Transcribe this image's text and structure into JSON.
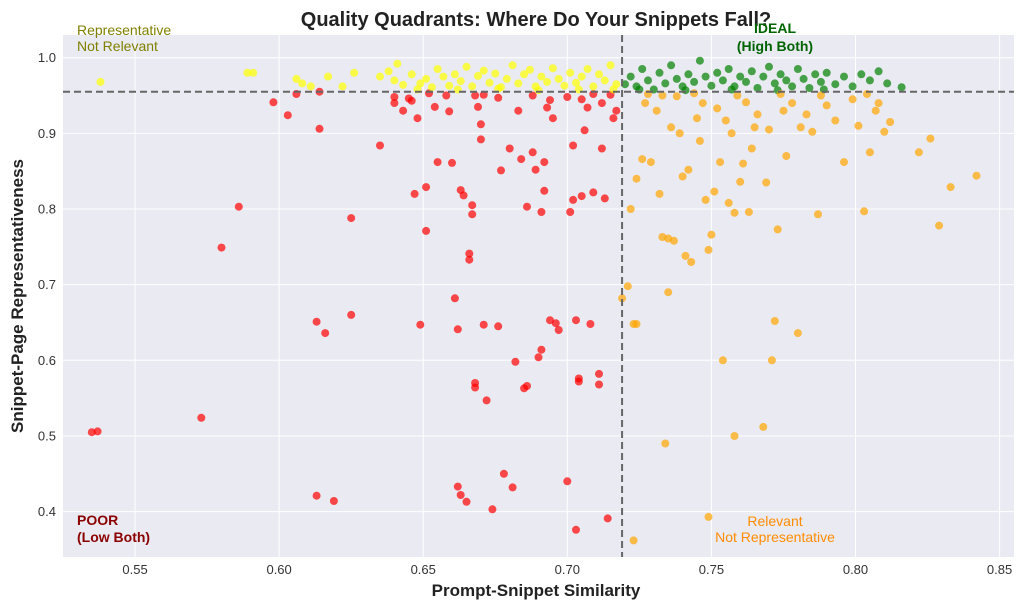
{
  "chart_data": {
    "type": "scatter",
    "title": "Quality Quadrants: Where Do Your Snippets Fall?",
    "xlabel": "Prompt-Snippet Similarity",
    "ylabel": "Snippet-Page Representativeness",
    "xlim": [
      0.525,
      0.855
    ],
    "ylim": [
      0.34,
      1.03
    ],
    "x_ticks": [
      "0.55",
      "0.60",
      "0.65",
      "0.70",
      "0.75",
      "0.80",
      "0.85"
    ],
    "y_ticks": [
      "0.4",
      "0.5",
      "0.6",
      "0.7",
      "0.8",
      "0.9",
      "1.0"
    ],
    "grid": true,
    "thresholds": {
      "x": 0.719,
      "y": 0.955
    },
    "colors": {
      "ideal": "#008000",
      "representative_not_relevant": "#ffff00",
      "relevant_not_representative": "#ffa500",
      "poor": "#ff0000",
      "background": "#eaeaf2",
      "threshold_line": "#666666"
    },
    "quadrant_labels": {
      "ideal_line1": "IDEAL",
      "ideal_line2": "(High Both)",
      "rep_line1": "Representative",
      "rep_line2": "Not Relevant",
      "poor_line1": "POOR",
      "poor_line2": "(Low Both)",
      "rel_line1": "Relevant",
      "rel_line2": "Not Representative"
    },
    "series": [
      {
        "quadrant": "poor",
        "points": [
          [
            0.535,
            0.505
          ],
          [
            0.537,
            0.506
          ],
          [
            0.573,
            0.524
          ],
          [
            0.58,
            0.749
          ],
          [
            0.586,
            0.803
          ],
          [
            0.598,
            0.941
          ],
          [
            0.603,
            0.924
          ],
          [
            0.613,
            0.651
          ],
          [
            0.614,
            0.906
          ],
          [
            0.614,
            0.955
          ],
          [
            0.616,
            0.636
          ],
          [
            0.613,
            0.421
          ],
          [
            0.619,
            0.414
          ],
          [
            0.625,
            0.66
          ],
          [
            0.625,
            0.788
          ],
          [
            0.635,
            0.884
          ],
          [
            0.64,
            0.94
          ],
          [
            0.643,
            0.93
          ],
          [
            0.645,
            0.946
          ],
          [
            0.648,
            0.92
          ],
          [
            0.647,
            0.82
          ],
          [
            0.649,
            0.647
          ],
          [
            0.651,
            0.771
          ],
          [
            0.651,
            0.829
          ],
          [
            0.654,
            0.935
          ],
          [
            0.655,
            0.862
          ],
          [
            0.658,
            0.95
          ],
          [
            0.66,
            0.861
          ],
          [
            0.661,
            0.682
          ],
          [
            0.662,
            0.641
          ],
          [
            0.662,
            0.433
          ],
          [
            0.663,
            0.422
          ],
          [
            0.663,
            0.825
          ],
          [
            0.664,
            0.818
          ],
          [
            0.665,
            0.413
          ],
          [
            0.666,
            0.733
          ],
          [
            0.666,
            0.741
          ],
          [
            0.667,
            0.805
          ],
          [
            0.667,
            0.793
          ],
          [
            0.668,
            0.57
          ],
          [
            0.668,
            0.564
          ],
          [
            0.669,
            0.935
          ],
          [
            0.67,
            0.912
          ],
          [
            0.67,
            0.892
          ],
          [
            0.671,
            0.647
          ],
          [
            0.672,
            0.547
          ],
          [
            0.674,
            0.403
          ],
          [
            0.676,
            0.645
          ],
          [
            0.677,
            0.851
          ],
          [
            0.678,
            0.45
          ],
          [
            0.68,
            0.88
          ],
          [
            0.681,
            0.432
          ],
          [
            0.682,
            0.598
          ],
          [
            0.683,
            0.93
          ],
          [
            0.684,
            0.866
          ],
          [
            0.685,
            0.563
          ],
          [
            0.686,
            0.566
          ],
          [
            0.686,
            0.803
          ],
          [
            0.688,
            0.875
          ],
          [
            0.689,
            0.852
          ],
          [
            0.69,
            0.604
          ],
          [
            0.691,
            0.614
          ],
          [
            0.691,
            0.796
          ],
          [
            0.692,
            0.824
          ],
          [
            0.692,
            0.862
          ],
          [
            0.693,
            0.934
          ],
          [
            0.694,
            0.653
          ],
          [
            0.695,
            0.92
          ],
          [
            0.696,
            0.649
          ],
          [
            0.697,
            0.64
          ],
          [
            0.7,
            0.44
          ],
          [
            0.701,
            0.796
          ],
          [
            0.702,
            0.884
          ],
          [
            0.702,
            0.812
          ],
          [
            0.703,
            0.376
          ],
          [
            0.703,
            0.653
          ],
          [
            0.704,
            0.572
          ],
          [
            0.704,
            0.576
          ],
          [
            0.705,
            0.817
          ],
          [
            0.706,
            0.904
          ],
          [
            0.707,
            0.934
          ],
          [
            0.708,
            0.648
          ],
          [
            0.709,
            0.822
          ],
          [
            0.711,
            0.582
          ],
          [
            0.711,
            0.568
          ],
          [
            0.712,
            0.88
          ],
          [
            0.713,
            0.814
          ],
          [
            0.714,
            0.391
          ],
          [
            0.716,
            0.92
          ],
          [
            0.717,
            0.93
          ],
          [
            0.606,
            0.952
          ],
          [
            0.64,
            0.948
          ],
          [
            0.652,
            0.953
          ],
          [
            0.671,
            0.951
          ],
          [
            0.688,
            0.95
          ],
          [
            0.7,
            0.948
          ],
          [
            0.709,
            0.952
          ],
          [
            0.715,
            0.951
          ],
          [
            0.646,
            0.943
          ],
          [
            0.676,
            0.947
          ],
          [
            0.694,
            0.944
          ],
          [
            0.705,
            0.945
          ],
          [
            0.712,
            0.94
          ],
          [
            0.659,
            0.929
          ],
          [
            0.668,
            0.95
          ]
        ]
      },
      {
        "quadrant": "representative_not_relevant",
        "points": [
          [
            0.538,
            0.968
          ],
          [
            0.589,
            0.98
          ],
          [
            0.591,
            0.98
          ],
          [
            0.606,
            0.972
          ],
          [
            0.608,
            0.966
          ],
          [
            0.611,
            0.962
          ],
          [
            0.617,
            0.975
          ],
          [
            0.622,
            0.962
          ],
          [
            0.626,
            0.98
          ],
          [
            0.635,
            0.975
          ],
          [
            0.638,
            0.982
          ],
          [
            0.64,
            0.97
          ],
          [
            0.641,
            0.992
          ],
          [
            0.643,
            0.964
          ],
          [
            0.646,
            0.978
          ],
          [
            0.649,
            0.966
          ],
          [
            0.651,
            0.972
          ],
          [
            0.653,
            0.961
          ],
          [
            0.655,
            0.985
          ],
          [
            0.657,
            0.975
          ],
          [
            0.659,
            0.963
          ],
          [
            0.661,
            0.978
          ],
          [
            0.663,
            0.969
          ],
          [
            0.665,
            0.988
          ],
          [
            0.667,
            0.962
          ],
          [
            0.669,
            0.976
          ],
          [
            0.671,
            0.983
          ],
          [
            0.673,
            0.967
          ],
          [
            0.675,
            0.979
          ],
          [
            0.677,
            0.961
          ],
          [
            0.679,
            0.972
          ],
          [
            0.681,
            0.99
          ],
          [
            0.683,
            0.966
          ],
          [
            0.685,
            0.978
          ],
          [
            0.687,
            0.984
          ],
          [
            0.689,
            0.962
          ],
          [
            0.691,
            0.975
          ],
          [
            0.693,
            0.968
          ],
          [
            0.695,
            0.986
          ],
          [
            0.697,
            0.972
          ],
          [
            0.699,
            0.963
          ],
          [
            0.701,
            0.98
          ],
          [
            0.703,
            0.967
          ],
          [
            0.705,
            0.975
          ],
          [
            0.707,
            0.985
          ],
          [
            0.709,
            0.962
          ],
          [
            0.711,
            0.978
          ],
          [
            0.713,
            0.97
          ],
          [
            0.715,
            0.99
          ],
          [
            0.717,
            0.965
          ],
          [
            0.648,
            0.958
          ],
          [
            0.662,
            0.958
          ],
          [
            0.676,
            0.959
          ],
          [
            0.69,
            0.957
          ],
          [
            0.704,
            0.958
          ],
          [
            0.716,
            0.958
          ]
        ]
      },
      {
        "quadrant": "ideal",
        "points": [
          [
            0.72,
            0.965
          ],
          [
            0.722,
            0.975
          ],
          [
            0.724,
            0.962
          ],
          [
            0.726,
            0.985
          ],
          [
            0.728,
            0.97
          ],
          [
            0.73,
            0.958
          ],
          [
            0.732,
            0.98
          ],
          [
            0.734,
            0.966
          ],
          [
            0.736,
            0.99
          ],
          [
            0.738,
            0.972
          ],
          [
            0.74,
            0.962
          ],
          [
            0.742,
            0.978
          ],
          [
            0.744,
            0.968
          ],
          [
            0.746,
            0.996
          ],
          [
            0.748,
            0.975
          ],
          [
            0.75,
            0.963
          ],
          [
            0.752,
            0.98
          ],
          [
            0.754,
            0.97
          ],
          [
            0.756,
            0.985
          ],
          [
            0.758,
            0.962
          ],
          [
            0.76,
            0.975
          ],
          [
            0.762,
            0.968
          ],
          [
            0.764,
            0.982
          ],
          [
            0.766,
            0.96
          ],
          [
            0.768,
            0.975
          ],
          [
            0.77,
            0.988
          ],
          [
            0.772,
            0.966
          ],
          [
            0.774,
            0.978
          ],
          [
            0.776,
            0.97
          ],
          [
            0.778,
            0.962
          ],
          [
            0.78,
            0.985
          ],
          [
            0.782,
            0.972
          ],
          [
            0.784,
            0.96
          ],
          [
            0.786,
            0.978
          ],
          [
            0.788,
            0.968
          ],
          [
            0.79,
            0.98
          ],
          [
            0.793,
            0.965
          ],
          [
            0.796,
            0.975
          ],
          [
            0.799,
            0.962
          ],
          [
            0.802,
            0.978
          ],
          [
            0.805,
            0.97
          ],
          [
            0.808,
            0.982
          ],
          [
            0.811,
            0.966
          ],
          [
            0.816,
            0.961
          ],
          [
            0.725,
            0.958
          ],
          [
            0.741,
            0.957
          ],
          [
            0.757,
            0.958
          ],
          [
            0.773,
            0.957
          ],
          [
            0.789,
            0.958
          ]
        ]
      },
      {
        "quadrant": "relevant_not_representative",
        "points": [
          [
            0.719,
            0.682
          ],
          [
            0.721,
            0.698
          ],
          [
            0.722,
            0.8
          ],
          [
            0.723,
            0.648
          ],
          [
            0.724,
            0.648
          ],
          [
            0.723,
            0.362
          ],
          [
            0.724,
            0.84
          ],
          [
            0.726,
            0.866
          ],
          [
            0.728,
            0.952
          ],
          [
            0.729,
            0.862
          ],
          [
            0.731,
            0.93
          ],
          [
            0.732,
            0.82
          ],
          [
            0.733,
            0.763
          ],
          [
            0.734,
            0.49
          ],
          [
            0.735,
            0.69
          ],
          [
            0.735,
            0.761
          ],
          [
            0.736,
            0.908
          ],
          [
            0.737,
            0.758
          ],
          [
            0.738,
            0.949
          ],
          [
            0.739,
            0.9
          ],
          [
            0.74,
            0.843
          ],
          [
            0.741,
            0.738
          ],
          [
            0.742,
            0.852
          ],
          [
            0.743,
            0.73
          ],
          [
            0.745,
            0.92
          ],
          [
            0.746,
            0.89
          ],
          [
            0.747,
            0.94
          ],
          [
            0.748,
            0.812
          ],
          [
            0.749,
            0.746
          ],
          [
            0.749,
            0.393
          ],
          [
            0.75,
            0.766
          ],
          [
            0.751,
            0.823
          ],
          [
            0.752,
            0.933
          ],
          [
            0.753,
            0.862
          ],
          [
            0.754,
            0.6
          ],
          [
            0.755,
            0.917
          ],
          [
            0.756,
            0.808
          ],
          [
            0.757,
            0.9
          ],
          [
            0.758,
            0.5
          ],
          [
            0.758,
            0.795
          ],
          [
            0.76,
            0.836
          ],
          [
            0.761,
            0.86
          ],
          [
            0.762,
            0.941
          ],
          [
            0.763,
            0.796
          ],
          [
            0.764,
            0.88
          ],
          [
            0.765,
            0.908
          ],
          [
            0.766,
            0.925
          ],
          [
            0.768,
            0.512
          ],
          [
            0.769,
            0.835
          ],
          [
            0.77,
            0.905
          ],
          [
            0.771,
            0.6
          ],
          [
            0.772,
            0.652
          ],
          [
            0.773,
            0.773
          ],
          [
            0.775,
            0.93
          ],
          [
            0.776,
            0.87
          ],
          [
            0.778,
            0.94
          ],
          [
            0.78,
            0.636
          ],
          [
            0.781,
            0.908
          ],
          [
            0.783,
            0.925
          ],
          [
            0.785,
            0.902
          ],
          [
            0.787,
            0.793
          ],
          [
            0.79,
            0.937
          ],
          [
            0.793,
            0.917
          ],
          [
            0.796,
            0.862
          ],
          [
            0.799,
            0.945
          ],
          [
            0.801,
            0.91
          ],
          [
            0.803,
            0.797
          ],
          [
            0.805,
            0.875
          ],
          [
            0.807,
            0.93
          ],
          [
            0.81,
            0.902
          ],
          [
            0.812,
            0.915
          ],
          [
            0.822,
            0.875
          ],
          [
            0.826,
            0.893
          ],
          [
            0.829,
            0.778
          ],
          [
            0.833,
            0.829
          ],
          [
            0.842,
            0.844
          ],
          [
            0.727,
            0.94
          ],
          [
            0.733,
            0.95
          ],
          [
            0.744,
            0.953
          ],
          [
            0.759,
            0.95
          ],
          [
            0.774,
            0.952
          ],
          [
            0.788,
            0.95
          ],
          [
            0.804,
            0.952
          ],
          [
            0.808,
            0.94
          ]
        ]
      }
    ]
  }
}
